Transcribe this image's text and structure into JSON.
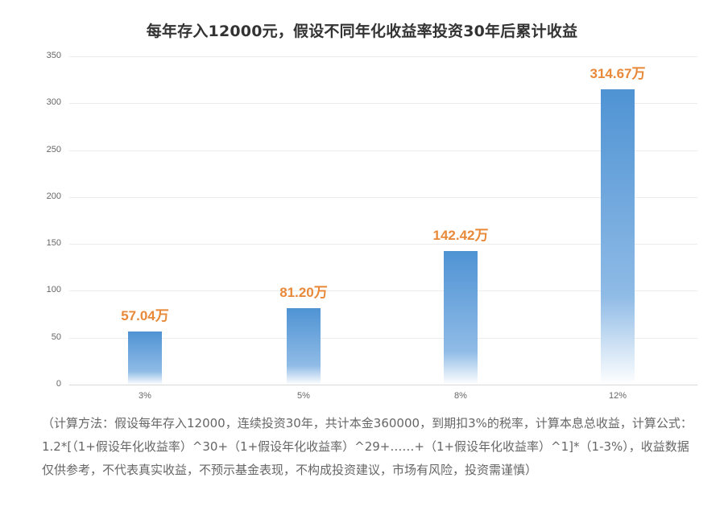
{
  "chart_data": {
    "type": "bar",
    "title": "每年存入12000元，假设不同年化收益率投资30年后累计收益",
    "categories": [
      "3%",
      "5%",
      "8%",
      "12%"
    ],
    "values": [
      57.04,
      81.2,
      142.42,
      314.67
    ],
    "value_labels": [
      "57.04万",
      "81.20万",
      "142.42万",
      "314.67万"
    ],
    "xlabel": "",
    "ylabel": "",
    "ylim": [
      0,
      350
    ],
    "yticks": [
      0,
      50,
      100,
      150,
      200,
      250,
      300,
      350
    ],
    "grid": true,
    "legend": "none",
    "colors": {
      "bar_top": "#4f93d4",
      "bar_bottom": "#ffffff",
      "value_label": "#e8893a"
    }
  },
  "note": "（计算方法：假设每年存入12000，连续投资30年，共计本金360000，到期扣3%的税率，计算本息总收益，计算公式：1.2*[（1+假设年化收益率）^30+（1+假设年化收益率）^29+……+（1+假设年化收益率）^1]*（1-3%），收益数据仅供参考，不代表真实收益，不预示基金表现，不构成投资建议，市场有风险，投资需谨慎）"
}
